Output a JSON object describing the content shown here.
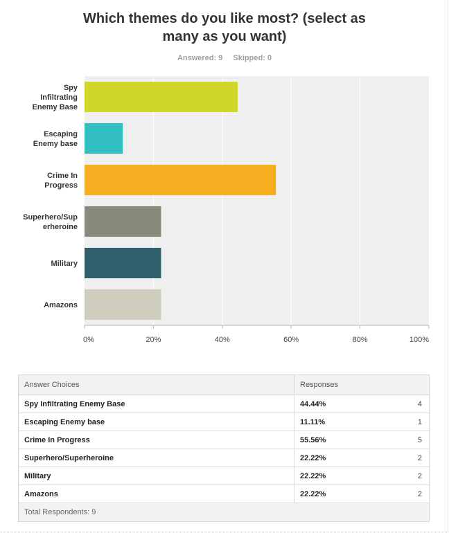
{
  "header": {
    "title": "Which themes do you like most? (select as many as you want)",
    "answered": "Answered: 9",
    "skipped": "Skipped: 0"
  },
  "chart_data": {
    "type": "bar",
    "orientation": "horizontal",
    "title": "Which themes do you like most? (select as many as you want)",
    "categories": [
      "Spy Infiltrating Enemy Base",
      "Escaping Enemy base",
      "Crime In Progress",
      "Superhero/Superheroine",
      "Military",
      "Amazons"
    ],
    "category_display": [
      [
        "Spy",
        "Infiltrating",
        "Enemy Base"
      ],
      [
        "Escaping",
        "Enemy base"
      ],
      [
        "Crime In",
        "Progress"
      ],
      [
        "Superhero/Sup",
        "erheroine"
      ],
      [
        "Military"
      ],
      [
        "Amazons"
      ]
    ],
    "values": [
      44.44,
      11.11,
      55.56,
      22.22,
      22.22,
      22.22
    ],
    "colors": [
      "#cfd82a",
      "#33bfc1",
      "#f6ae21",
      "#8a8a7a",
      "#2e5f6b",
      "#cfcdbe"
    ],
    "xlim": [
      0,
      100
    ],
    "xticks": [
      "0%",
      "20%",
      "40%",
      "60%",
      "80%",
      "100%"
    ],
    "xlabel": "",
    "ylabel": "",
    "grid": true,
    "plot_background": "#efefef"
  },
  "table": {
    "headers": [
      "Answer Choices",
      "Responses"
    ],
    "rows": [
      {
        "choice": "Spy Infiltrating Enemy Base",
        "pct": "44.44%",
        "count": "4"
      },
      {
        "choice": "Escaping Enemy base",
        "pct": "11.11%",
        "count": "1"
      },
      {
        "choice": "Crime In Progress",
        "pct": "55.56%",
        "count": "5"
      },
      {
        "choice": "Superhero/Superheroine",
        "pct": "22.22%",
        "count": "2"
      },
      {
        "choice": "Military",
        "pct": "22.22%",
        "count": "2"
      },
      {
        "choice": "Amazons",
        "pct": "22.22%",
        "count": "2"
      }
    ],
    "footer": "Total Respondents: 9"
  }
}
